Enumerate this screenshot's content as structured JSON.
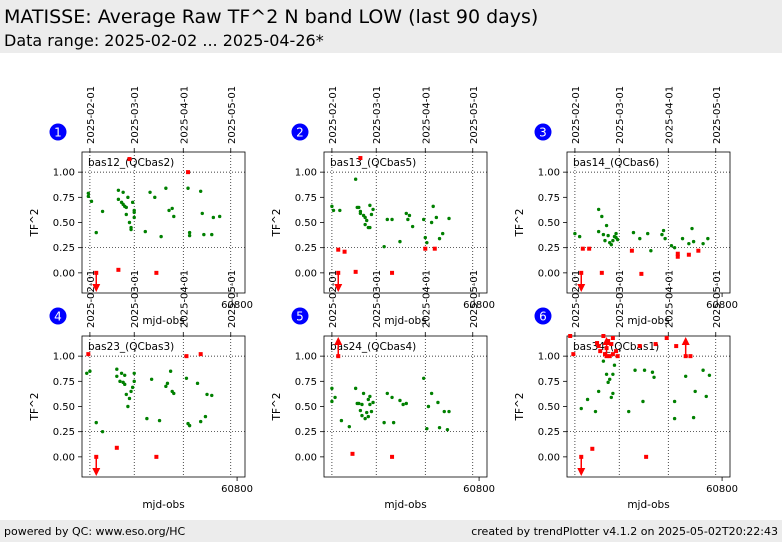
{
  "header": {
    "title": "MATISSE: Average Raw TF^2 N band LOW (last 90 days)",
    "subtitle": "Data range: 2025-02-02 ... 2025-04-26*"
  },
  "footer": {
    "left": "powered by QC: www.eso.org/HC",
    "right": "created by trendPlotter v4.1.2 on 2025-05-02T20:22:43"
  },
  "colors": {
    "ok": "#008000",
    "outlier": "#ff0000",
    "badge": "#0000ff",
    "ref_line": "#000000"
  },
  "chart_data": {
    "type": "scatter",
    "xlabel": "mjd-obs",
    "ylabel": "TF^2",
    "xlim": [
      60702,
      60805
    ],
    "ylim": [
      -0.2,
      1.2
    ],
    "x_ticks": [
      60800
    ],
    "y_ticks": [
      0.0,
      0.25,
      0.5,
      0.75,
      1.0
    ],
    "y_tick_labels": [
      "0.00",
      "0.25",
      "0.50",
      "0.75",
      "1.00"
    ],
    "date_ticks": [
      {
        "label": "2025-02-01",
        "mjd": 60707
      },
      {
        "label": "2025-03-01",
        "mjd": 60735
      },
      {
        "label": "2025-04-01",
        "mjd": 60766
      },
      {
        "label": "2025-05-01",
        "mjd": 60796
      }
    ],
    "panels": [
      {
        "number": "1",
        "label": "bas12_(QCbas2)",
        "ref_lines": [
          0.25,
          1.0
        ],
        "ok": [
          [
            60706,
            0.79
          ],
          [
            60706,
            0.76
          ],
          [
            60708,
            0.71
          ],
          [
            60711,
            0.4
          ],
          [
            60715,
            0.61
          ],
          [
            60725,
            0.82
          ],
          [
            60725,
            0.73
          ],
          [
            60727,
            0.7
          ],
          [
            60728,
            0.8
          ],
          [
            60728,
            0.68
          ],
          [
            60729,
            0.66
          ],
          [
            60730,
            0.65
          ],
          [
            60730,
            0.58
          ],
          [
            60731,
            0.75
          ],
          [
            60732,
            0.5
          ],
          [
            60733,
            0.45
          ],
          [
            60733,
            0.43
          ],
          [
            60734,
            0.7
          ],
          [
            60735,
            0.55
          ],
          [
            60735,
            0.62
          ],
          [
            60735,
            0.6
          ],
          [
            60742,
            0.41
          ],
          [
            60745,
            0.8
          ],
          [
            60748,
            0.75
          ],
          [
            60752,
            0.36
          ],
          [
            60755,
            0.84
          ],
          [
            60757,
            0.62
          ],
          [
            60759,
            0.64
          ],
          [
            60760,
            0.56
          ],
          [
            60769,
            0.84
          ],
          [
            60770,
            0.4
          ],
          [
            60770,
            0.37
          ],
          [
            60777,
            0.81
          ],
          [
            60778,
            0.59
          ],
          [
            60779,
            0.38
          ],
          [
            60784,
            0.38
          ],
          [
            60785,
            0.55
          ],
          [
            60789,
            0.56
          ]
        ],
        "outliers": [
          [
            60732,
            1.13
          ],
          [
            60725,
            0.03
          ],
          [
            60749,
            0.0
          ],
          [
            60769,
            1.0
          ]
        ],
        "arrows": [
          {
            "x": 60711,
            "dir": "down"
          }
        ]
      },
      {
        "number": "2",
        "label": "bas13_(QCbas5)",
        "ref_lines": [
          0.25,
          1.0
        ],
        "ok": [
          [
            60707,
            0.66
          ],
          [
            60708,
            0.62
          ],
          [
            60712,
            0.62
          ],
          [
            60722,
            0.93
          ],
          [
            60723,
            0.65
          ],
          [
            60724,
            0.65
          ],
          [
            60725,
            0.61
          ],
          [
            60725,
            0.59
          ],
          [
            60727,
            0.57
          ],
          [
            60728,
            0.55
          ],
          [
            60728,
            0.48
          ],
          [
            60729,
            0.52
          ],
          [
            60730,
            0.45
          ],
          [
            60731,
            0.45
          ],
          [
            60731,
            0.67
          ],
          [
            60732,
            0.58
          ],
          [
            60733,
            0.63
          ],
          [
            60740,
            0.26
          ],
          [
            60742,
            0.53
          ],
          [
            60745,
            0.53
          ],
          [
            60750,
            0.31
          ],
          [
            60754,
            0.59
          ],
          [
            60755,
            0.53
          ],
          [
            60756,
            0.57
          ],
          [
            60758,
            0.46
          ],
          [
            60765,
            0.53
          ],
          [
            60766,
            0.35
          ],
          [
            60767,
            0.3
          ],
          [
            60770,
            0.5
          ],
          [
            60771,
            0.66
          ],
          [
            60773,
            0.55
          ],
          [
            60775,
            0.34
          ],
          [
            60777,
            0.39
          ],
          [
            60781,
            0.54
          ]
        ],
        "outliers": [
          [
            60725,
            1.14
          ],
          [
            60711,
            0.23
          ],
          [
            60715,
            0.21
          ],
          [
            60722,
            0.01
          ],
          [
            60745,
            0.0
          ],
          [
            60766,
            0.24
          ],
          [
            60772,
            0.24
          ]
        ],
        "arrows": [
          {
            "x": 60711,
            "dir": "down"
          }
        ]
      },
      {
        "number": "3",
        "label": "bas14_(QCbas6)",
        "ref_lines": [
          0.25,
          1.0
        ],
        "ok": [
          [
            60707,
            0.39
          ],
          [
            60710,
            0.36
          ],
          [
            60722,
            0.63
          ],
          [
            60722,
            0.41
          ],
          [
            60724,
            0.56
          ],
          [
            60725,
            0.38
          ],
          [
            60726,
            0.32
          ],
          [
            60727,
            0.47
          ],
          [
            60728,
            0.37
          ],
          [
            60729,
            0.3
          ],
          [
            60730,
            0.28
          ],
          [
            60731,
            0.32
          ],
          [
            60732,
            0.36
          ],
          [
            60733,
            0.39
          ],
          [
            60733,
            0.35
          ],
          [
            60734,
            0.33
          ],
          [
            60744,
            0.4
          ],
          [
            60748,
            0.34
          ],
          [
            60753,
            0.39
          ],
          [
            60755,
            0.22
          ],
          [
            60762,
            0.38
          ],
          [
            60763,
            0.42
          ],
          [
            60764,
            0.34
          ],
          [
            60768,
            0.27
          ],
          [
            60770,
            0.25
          ],
          [
            60775,
            0.34
          ],
          [
            60779,
            0.29
          ],
          [
            60781,
            0.44
          ],
          [
            60782,
            0.31
          ],
          [
            60788,
            0.29
          ],
          [
            60791,
            0.34
          ]
        ],
        "outliers": [
          [
            60712,
            0.24
          ],
          [
            60716,
            0.24
          ],
          [
            60724,
            0.0
          ],
          [
            60743,
            0.22
          ],
          [
            60749,
            -0.01
          ],
          [
            60772,
            0.19
          ],
          [
            60772,
            0.16
          ],
          [
            60779,
            0.18
          ],
          [
            60785,
            0.22
          ]
        ],
        "arrows": [
          {
            "x": 60711,
            "dir": "down"
          }
        ]
      },
      {
        "number": "4",
        "label": "bas23_(QCbas3)",
        "ref_lines": [
          0.25,
          1.0
        ],
        "ok": [
          [
            60705,
            0.83
          ],
          [
            60707,
            0.85
          ],
          [
            60711,
            0.34
          ],
          [
            60715,
            0.25
          ],
          [
            60724,
            0.87
          ],
          [
            60724,
            0.8
          ],
          [
            60726,
            0.75
          ],
          [
            60727,
            0.83
          ],
          [
            60728,
            0.74
          ],
          [
            60729,
            0.81
          ],
          [
            60729,
            0.72
          ],
          [
            60730,
            0.62
          ],
          [
            60731,
            0.5
          ],
          [
            60732,
            0.58
          ],
          [
            60733,
            0.65
          ],
          [
            60734,
            0.69
          ],
          [
            60735,
            0.75
          ],
          [
            60735,
            0.83
          ],
          [
            60743,
            0.38
          ],
          [
            60746,
            0.77
          ],
          [
            60751,
            0.36
          ],
          [
            60755,
            0.7
          ],
          [
            60756,
            0.73
          ],
          [
            60758,
            0.85
          ],
          [
            60759,
            0.65
          ],
          [
            60760,
            0.63
          ],
          [
            60768,
            0.78
          ],
          [
            60769,
            0.33
          ],
          [
            60770,
            0.31
          ],
          [
            60775,
            0.73
          ],
          [
            60777,
            0.35
          ],
          [
            60780,
            0.4
          ],
          [
            60781,
            0.62
          ],
          [
            60784,
            0.61
          ]
        ],
        "outliers": [
          [
            60706,
            1.02
          ],
          [
            60724,
            0.09
          ],
          [
            60749,
            0.0
          ],
          [
            60768,
            1.0
          ],
          [
            60777,
            1.02
          ]
        ],
        "arrows": [
          {
            "x": 60711,
            "dir": "down"
          }
        ]
      },
      {
        "number": "5",
        "label": "bas24_(QCbas4)",
        "ref_lines": [
          0.25,
          1.0
        ],
        "ok": [
          [
            60707,
            0.68
          ],
          [
            60707,
            0.55
          ],
          [
            60709,
            0.59
          ],
          [
            60713,
            0.36
          ],
          [
            60718,
            0.3
          ],
          [
            60722,
            0.68
          ],
          [
            60723,
            0.53
          ],
          [
            60724,
            0.53
          ],
          [
            60725,
            0.46
          ],
          [
            60726,
            0.41
          ],
          [
            60726,
            0.52
          ],
          [
            60727,
            0.63
          ],
          [
            60728,
            0.38
          ],
          [
            60729,
            0.44
          ],
          [
            60730,
            0.4
          ],
          [
            60730,
            0.57
          ],
          [
            60731,
            0.6
          ],
          [
            60731,
            0.52
          ],
          [
            60732,
            0.45
          ],
          [
            60733,
            0.54
          ],
          [
            60740,
            0.34
          ],
          [
            60742,
            0.63
          ],
          [
            60745,
            0.59
          ],
          [
            60746,
            0.34
          ],
          [
            60750,
            0.56
          ],
          [
            60752,
            0.52
          ],
          [
            60754,
            0.53
          ],
          [
            60765,
            0.78
          ],
          [
            60767,
            0.28
          ],
          [
            60768,
            0.5
          ],
          [
            60770,
            0.63
          ],
          [
            60774,
            0.54
          ],
          [
            60775,
            0.29
          ],
          [
            60778,
            0.45
          ],
          [
            60780,
            0.27
          ],
          [
            60781,
            0.45
          ]
        ],
        "outliers": [
          [
            60720,
            0.03
          ],
          [
            60745,
            0.0
          ]
        ],
        "arrows": [
          {
            "x": 60711,
            "dir": "up"
          }
        ]
      },
      {
        "number": "6",
        "label": "bas34_(QCbas1)",
        "ref_lines": [
          0.25,
          1.0
        ],
        "ok": [
          [
            60711,
            0.48
          ],
          [
            60715,
            0.57
          ],
          [
            60720,
            0.45
          ],
          [
            60722,
            0.65
          ],
          [
            60725,
            0.95
          ],
          [
            60727,
            0.82
          ],
          [
            60728,
            0.74
          ],
          [
            60729,
            0.77
          ],
          [
            60730,
            0.59
          ],
          [
            60731,
            0.63
          ],
          [
            60731,
            0.82
          ],
          [
            60732,
            0.91
          ],
          [
            60741,
            0.45
          ],
          [
            60745,
            0.86
          ],
          [
            60750,
            0.55
          ],
          [
            60751,
            0.86
          ],
          [
            60756,
            0.84
          ],
          [
            60757,
            0.79
          ],
          [
            60770,
            0.38
          ],
          [
            60770,
            0.55
          ],
          [
            60777,
            0.8
          ],
          [
            60782,
            0.39
          ],
          [
            60783,
            0.65
          ],
          [
            60788,
            0.86
          ],
          [
            60790,
            0.6
          ],
          [
            60792,
            0.81
          ]
        ],
        "outliers": [
          [
            60704,
            1.2
          ],
          [
            60706,
            1.02
          ],
          [
            60718,
            0.08
          ],
          [
            60721,
            1.13
          ],
          [
            60722,
            1.1
          ],
          [
            60723,
            1.05
          ],
          [
            60725,
            1.2
          ],
          [
            60726,
            1.02
          ],
          [
            60727,
            1.08
          ],
          [
            60728,
            1.15
          ],
          [
            60729,
            1.0
          ],
          [
            60730,
            1.12
          ],
          [
            60731,
            1.18
          ],
          [
            60731,
            1.02
          ],
          [
            60733,
            1.05
          ],
          [
            60734,
            1.0
          ],
          [
            60748,
            1.1
          ],
          [
            60752,
            0.0
          ],
          [
            60758,
            1.12
          ],
          [
            60765,
            1.18
          ],
          [
            60771,
            1.1
          ],
          [
            60780,
            1.0
          ]
        ],
        "arrows": [
          {
            "x": 60711,
            "dir": "down"
          },
          {
            "x": 60727,
            "dir": "up"
          },
          {
            "x": 60777,
            "dir": "up"
          }
        ]
      }
    ]
  }
}
